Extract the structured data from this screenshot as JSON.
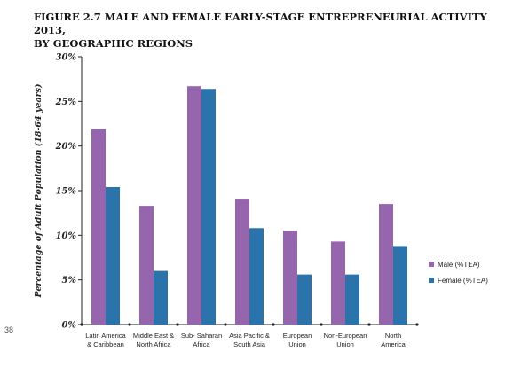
{
  "page": {
    "title_line1": "FIGURE 2.7 MALE AND FEMALE EARLY-STAGE ENTREPRENEURIAL ACTIVITY 2013,",
    "title_line2": "BY GEOGRAPHIC REGIONS",
    "page_number": "38"
  },
  "colors": {
    "male": "#9565AE",
    "female": "#2B73AB",
    "axis": "#222222"
  },
  "chart_data": {
    "type": "bar",
    "title": "FIGURE 2.7 MALE AND FEMALE EARLY-STAGE ENTREPRENEURIAL ACTIVITY 2013, BY GEOGRAPHIC REGIONS",
    "xlabel": "",
    "ylabel": "Percentage of Adult Population (18-64 years)",
    "ylim": [
      0,
      30
    ],
    "yticks": [
      0,
      5,
      10,
      15,
      20,
      25,
      30
    ],
    "ytick_labels": [
      "0%",
      "5%",
      "10%",
      "15%",
      "20%",
      "25%",
      "30%"
    ],
    "categories": [
      [
        "Latin America",
        "& Caribbean"
      ],
      [
        "Middle East &",
        "North Africa"
      ],
      [
        "Sub- Saharan",
        "Africa"
      ],
      [
        "Asia Pacific &",
        "South Asia"
      ],
      [
        "European",
        "Union"
      ],
      [
        "Non-European",
        "Union"
      ],
      [
        "North",
        "America"
      ]
    ],
    "series": [
      {
        "name": "Male (%TEA)",
        "values": [
          21.9,
          13.3,
          26.7,
          14.1,
          10.5,
          9.3,
          13.5
        ]
      },
      {
        "name": "Female (%TEA)",
        "values": [
          15.4,
          6.0,
          26.4,
          10.8,
          5.6,
          5.6,
          8.8
        ]
      }
    ],
    "grid": false,
    "legend": "right"
  }
}
